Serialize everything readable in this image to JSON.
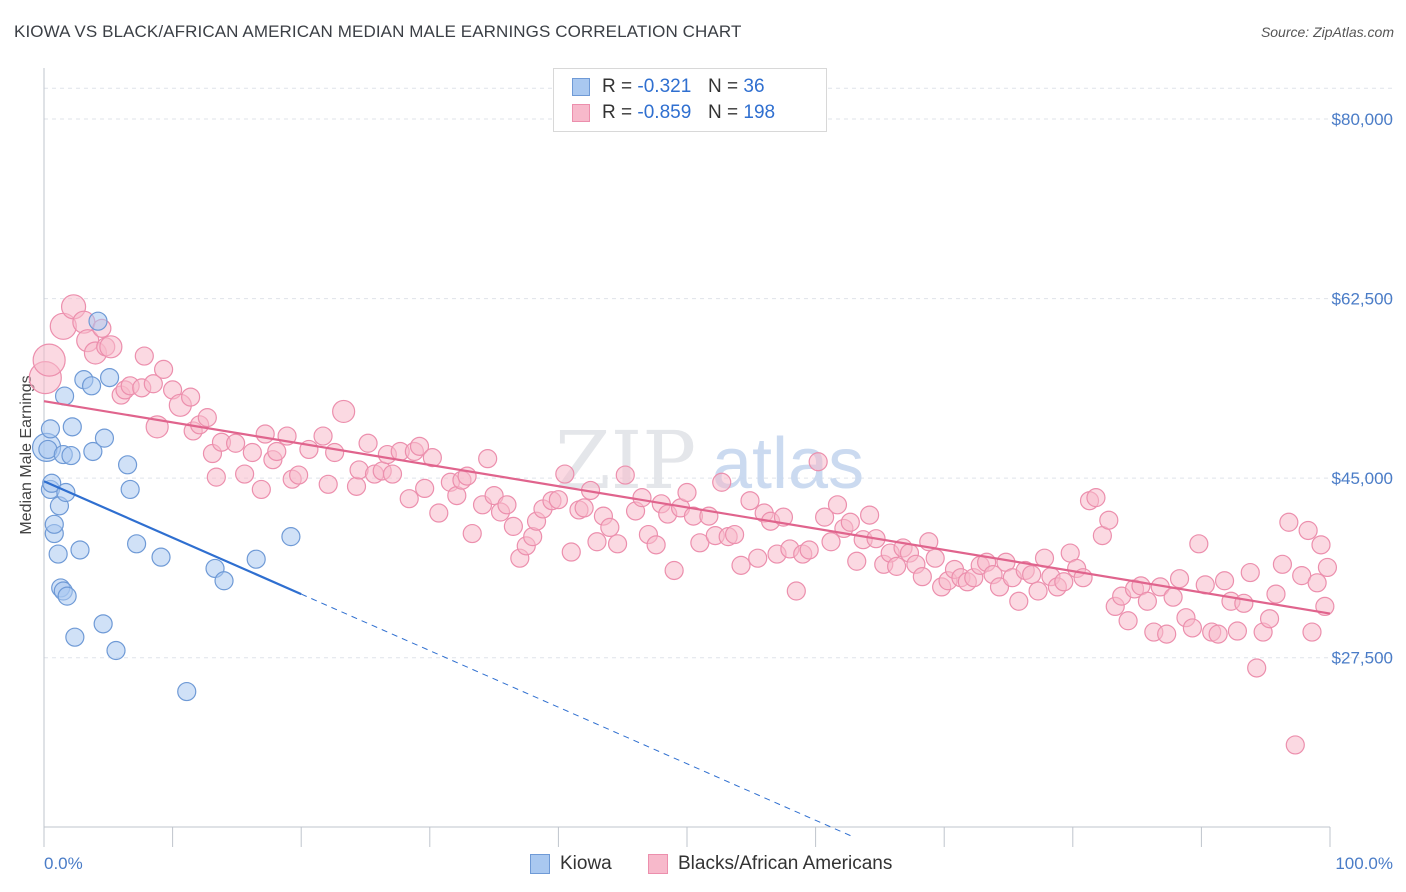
{
  "header": {
    "title": "KIOWA VS BLACK/AFRICAN AMERICAN MEDIAN MALE EARNINGS CORRELATION CHART",
    "source": "Source: ZipAtlas.com"
  },
  "watermark": {
    "zip": "ZIP",
    "atlas": "atlas"
  },
  "legend": {
    "kiowa": {
      "r_label": "R =",
      "r_value": "-0.321",
      "n_label": "N =",
      "n_value": "36"
    },
    "black": {
      "r_label": "R =",
      "r_value": "-0.859",
      "n_label": "N =",
      "n_value": "198"
    }
  },
  "bottom_legend": {
    "kiowa": "Kiowa",
    "black": "Blacks/African Americans"
  },
  "colors": {
    "kiowa_fill": "#a9c8f0",
    "kiowa_stroke": "#6f9ad6",
    "kiowa_line": "#2f6fd0",
    "black_fill": "#f7b9cb",
    "black_stroke": "#ec8fad",
    "black_line": "#e0648d",
    "axis_text": "#4a7cc7",
    "grid": "#dfe3ea"
  },
  "chart_data": {
    "type": "scatter",
    "title": "KIOWA VS BLACK/AFRICAN AMERICAN MEDIAN MALE EARNINGS CORRELATION CHART",
    "xlabel": "",
    "ylabel": "Median Male Earnings",
    "xlim": [
      0,
      100
    ],
    "ylim": [
      11000,
      84000
    ],
    "x_tick_labels": [
      "0.0%",
      "100.0%"
    ],
    "y_ticks": [
      27500,
      45000,
      62500,
      80000
    ],
    "y_tick_labels": [
      "$27,500",
      "$45,000",
      "$62,500",
      "$80,000"
    ],
    "grid": true,
    "legend_position": "top-center",
    "series": [
      {
        "name": "Kiowa",
        "r": -0.321,
        "n": 36,
        "trend": {
          "x0": 0,
          "y0": 44700,
          "x1": 20,
          "y1": 33700,
          "dash_x1": 63,
          "dash_y1": 10000
        },
        "points": [
          [
            0.2,
            48000,
            14
          ],
          [
            0.3,
            47800,
            9
          ],
          [
            0.5,
            43900,
            9
          ],
          [
            0.5,
            49800,
            9
          ],
          [
            0.6,
            44500,
            9
          ],
          [
            0.8,
            39600,
            9
          ],
          [
            0.8,
            40500,
            9
          ],
          [
            1.1,
            37600,
            9
          ],
          [
            1.2,
            42300,
            9
          ],
          [
            1.3,
            34300,
            9
          ],
          [
            1.5,
            34000,
            9
          ],
          [
            1.5,
            47300,
            9
          ],
          [
            1.6,
            53000,
            9
          ],
          [
            1.7,
            43600,
            9
          ],
          [
            1.8,
            33500,
            9
          ],
          [
            2.1,
            47200,
            9
          ],
          [
            2.2,
            50000,
            9
          ],
          [
            2.4,
            29500,
            9
          ],
          [
            2.8,
            38000,
            9
          ],
          [
            3.1,
            54600,
            9
          ],
          [
            3.7,
            54000,
            9
          ],
          [
            3.8,
            47600,
            9
          ],
          [
            4.2,
            60300,
            9
          ],
          [
            4.6,
            30800,
            9
          ],
          [
            4.7,
            48900,
            9
          ],
          [
            5.1,
            54800,
            9
          ],
          [
            5.6,
            28200,
            9
          ],
          [
            6.5,
            46300,
            9
          ],
          [
            6.7,
            43900,
            9
          ],
          [
            7.2,
            38600,
            9
          ],
          [
            9.1,
            37300,
            9
          ],
          [
            11.1,
            24200,
            9
          ],
          [
            13.3,
            36200,
            9
          ],
          [
            14.0,
            35000,
            9
          ],
          [
            16.5,
            37100,
            9
          ],
          [
            19.2,
            39300,
            9
          ]
        ]
      },
      {
        "name": "Blacks/African Americans",
        "r": -0.859,
        "n": 198,
        "trend": {
          "x0": 0,
          "y0": 52500,
          "x1": 100,
          "y1": 31800
        },
        "points": [
          [
            0.1,
            54800,
            16
          ],
          [
            0.4,
            56500,
            16
          ],
          [
            1.5,
            59800,
            13
          ],
          [
            2.3,
            61700,
            12
          ],
          [
            3.1,
            60200,
            11
          ],
          [
            3.4,
            58400,
            11
          ],
          [
            4.0,
            57200,
            11
          ],
          [
            4.5,
            59600,
            9
          ],
          [
            4.8,
            57800,
            9
          ],
          [
            5.2,
            57800,
            11
          ],
          [
            6.0,
            53100,
            9
          ],
          [
            6.3,
            53600,
            9
          ],
          [
            6.7,
            54000,
            9
          ],
          [
            7.6,
            53800,
            9
          ],
          [
            7.8,
            56900,
            9
          ],
          [
            8.5,
            54200,
            9
          ],
          [
            8.8,
            50000,
            11
          ],
          [
            9.3,
            55600,
            9
          ],
          [
            10.0,
            53600,
            9
          ],
          [
            10.6,
            52100,
            11
          ],
          [
            11.4,
            52900,
            9
          ],
          [
            11.6,
            49600,
            9
          ],
          [
            12.1,
            50200,
            9
          ],
          [
            12.7,
            50900,
            9
          ],
          [
            13.1,
            47400,
            9
          ],
          [
            13.4,
            45100,
            9
          ],
          [
            13.8,
            48500,
            9
          ],
          [
            14.9,
            48400,
            9
          ],
          [
            15.6,
            45400,
            9
          ],
          [
            16.2,
            47500,
            9
          ],
          [
            16.9,
            43900,
            9
          ],
          [
            17.2,
            49300,
            9
          ],
          [
            17.8,
            46800,
            9
          ],
          [
            18.1,
            47600,
            9
          ],
          [
            18.9,
            49100,
            9
          ],
          [
            19.3,
            44900,
            9
          ],
          [
            19.8,
            45300,
            9
          ],
          [
            20.6,
            47800,
            9
          ],
          [
            21.7,
            49100,
            9
          ],
          [
            22.1,
            44400,
            9
          ],
          [
            22.6,
            47500,
            9
          ],
          [
            23.3,
            51500,
            11
          ],
          [
            24.3,
            44200,
            9
          ],
          [
            24.5,
            45800,
            9
          ],
          [
            25.2,
            48400,
            9
          ],
          [
            25.7,
            45400,
            9
          ],
          [
            26.3,
            45700,
            9
          ],
          [
            26.7,
            47300,
            9
          ],
          [
            27.1,
            45400,
            9
          ],
          [
            27.7,
            47600,
            9
          ],
          [
            28.4,
            43000,
            9
          ],
          [
            28.8,
            47600,
            9
          ],
          [
            29.2,
            48100,
            9
          ],
          [
            29.6,
            44000,
            9
          ],
          [
            30.2,
            47000,
            9
          ],
          [
            30.7,
            41600,
            9
          ],
          [
            31.6,
            44600,
            9
          ],
          [
            32.1,
            43300,
            9
          ],
          [
            32.5,
            44800,
            9
          ],
          [
            32.9,
            45200,
            9
          ],
          [
            33.3,
            39600,
            9
          ],
          [
            34.1,
            42400,
            9
          ],
          [
            34.5,
            46900,
            9
          ],
          [
            35.0,
            43300,
            9
          ],
          [
            35.5,
            41700,
            9
          ],
          [
            36.0,
            42400,
            9
          ],
          [
            36.5,
            40300,
            9
          ],
          [
            37.0,
            37200,
            9
          ],
          [
            37.5,
            38400,
            9
          ],
          [
            38.0,
            39300,
            9
          ],
          [
            38.3,
            40800,
            9
          ],
          [
            38.8,
            42000,
            9
          ],
          [
            39.5,
            42800,
            9
          ],
          [
            40.0,
            42900,
            9
          ],
          [
            40.5,
            45400,
            9
          ],
          [
            41.0,
            37800,
            9
          ],
          [
            41.6,
            41900,
            9
          ],
          [
            42.0,
            42100,
            9
          ],
          [
            42.5,
            43800,
            9
          ],
          [
            43.0,
            38800,
            9
          ],
          [
            43.5,
            41300,
            9
          ],
          [
            44.0,
            40200,
            9
          ],
          [
            44.6,
            38600,
            9
          ],
          [
            45.2,
            45300,
            9
          ],
          [
            46.0,
            41800,
            9
          ],
          [
            46.5,
            43100,
            9
          ],
          [
            47.0,
            39500,
            9
          ],
          [
            47.6,
            38500,
            9
          ],
          [
            48.0,
            42500,
            9
          ],
          [
            48.5,
            41500,
            9
          ],
          [
            49.0,
            36000,
            9
          ],
          [
            49.5,
            42100,
            9
          ],
          [
            50.0,
            43600,
            9
          ],
          [
            50.5,
            41300,
            9
          ],
          [
            51.0,
            38700,
            9
          ],
          [
            51.7,
            41300,
            9
          ],
          [
            52.2,
            39400,
            9
          ],
          [
            52.7,
            44600,
            9
          ],
          [
            53.2,
            39300,
            9
          ],
          [
            53.7,
            39500,
            9
          ],
          [
            54.2,
            36500,
            9
          ],
          [
            54.9,
            42800,
            9
          ],
          [
            55.5,
            37200,
            9
          ],
          [
            56.0,
            41600,
            9
          ],
          [
            56.5,
            40800,
            9
          ],
          [
            57.0,
            37600,
            9
          ],
          [
            57.5,
            41200,
            9
          ],
          [
            58.0,
            38100,
            9
          ],
          [
            58.5,
            34000,
            9
          ],
          [
            59.0,
            37600,
            9
          ],
          [
            59.5,
            38000,
            9
          ],
          [
            60.2,
            46600,
            9
          ],
          [
            60.7,
            41200,
            9
          ],
          [
            61.2,
            38800,
            9
          ],
          [
            61.7,
            42400,
            9
          ],
          [
            62.2,
            40100,
            9
          ],
          [
            62.7,
            40700,
            9
          ],
          [
            63.2,
            36900,
            9
          ],
          [
            63.7,
            39000,
            9
          ],
          [
            64.2,
            41400,
            9
          ],
          [
            64.7,
            39100,
            9
          ],
          [
            65.3,
            36600,
            9
          ],
          [
            65.8,
            37700,
            9
          ],
          [
            66.3,
            36400,
            9
          ],
          [
            66.8,
            38200,
            9
          ],
          [
            67.3,
            37700,
            9
          ],
          [
            67.8,
            36600,
            9
          ],
          [
            68.3,
            35400,
            9
          ],
          [
            68.8,
            38800,
            9
          ],
          [
            69.3,
            37200,
            9
          ],
          [
            69.8,
            34400,
            9
          ],
          [
            70.3,
            35000,
            9
          ],
          [
            70.8,
            36100,
            9
          ],
          [
            71.3,
            35300,
            9
          ],
          [
            71.8,
            34900,
            9
          ],
          [
            72.3,
            35300,
            9
          ],
          [
            72.8,
            36500,
            9
          ],
          [
            73.3,
            36800,
            9
          ],
          [
            73.8,
            35600,
            9
          ],
          [
            74.3,
            34400,
            9
          ],
          [
            74.8,
            36800,
            9
          ],
          [
            75.3,
            35300,
            9
          ],
          [
            75.8,
            33000,
            9
          ],
          [
            76.3,
            36000,
            9
          ],
          [
            76.8,
            35600,
            9
          ],
          [
            77.3,
            34000,
            9
          ],
          [
            77.8,
            37200,
            9
          ],
          [
            78.3,
            35400,
            9
          ],
          [
            78.8,
            34400,
            9
          ],
          [
            79.3,
            34900,
            9
          ],
          [
            79.8,
            37700,
            9
          ],
          [
            80.3,
            36200,
            9
          ],
          [
            80.8,
            35300,
            9
          ],
          [
            81.3,
            42800,
            9
          ],
          [
            81.8,
            43100,
            9
          ],
          [
            82.3,
            39400,
            9
          ],
          [
            82.8,
            40900,
            9
          ],
          [
            83.3,
            32500,
            9
          ],
          [
            83.8,
            33500,
            9
          ],
          [
            84.3,
            31100,
            9
          ],
          [
            84.8,
            34200,
            9
          ],
          [
            85.3,
            34500,
            9
          ],
          [
            85.8,
            33000,
            9
          ],
          [
            86.3,
            30000,
            9
          ],
          [
            86.8,
            34400,
            9
          ],
          [
            87.3,
            29800,
            9
          ],
          [
            87.8,
            33400,
            9
          ],
          [
            88.3,
            35200,
            9
          ],
          [
            88.8,
            31400,
            9
          ],
          [
            89.3,
            30400,
            9
          ],
          [
            89.8,
            38600,
            9
          ],
          [
            90.3,
            34600,
            9
          ],
          [
            90.8,
            30000,
            9
          ],
          [
            91.3,
            29800,
            9
          ],
          [
            91.8,
            35000,
            9
          ],
          [
            92.3,
            33000,
            9
          ],
          [
            92.8,
            30100,
            9
          ],
          [
            93.3,
            32800,
            9
          ],
          [
            93.8,
            35800,
            9
          ],
          [
            94.3,
            26500,
            9
          ],
          [
            94.8,
            30000,
            9
          ],
          [
            95.3,
            31300,
            9
          ],
          [
            95.8,
            33700,
            9
          ],
          [
            96.3,
            36600,
            9
          ],
          [
            96.8,
            40700,
            9
          ],
          [
            97.3,
            19000,
            9
          ],
          [
            97.8,
            35500,
            9
          ],
          [
            98.3,
            39900,
            9
          ],
          [
            98.6,
            30000,
            9
          ],
          [
            99.0,
            34800,
            9
          ],
          [
            99.3,
            38500,
            9
          ],
          [
            99.6,
            32500,
            9
          ],
          [
            99.8,
            36300,
            9
          ]
        ]
      }
    ]
  }
}
